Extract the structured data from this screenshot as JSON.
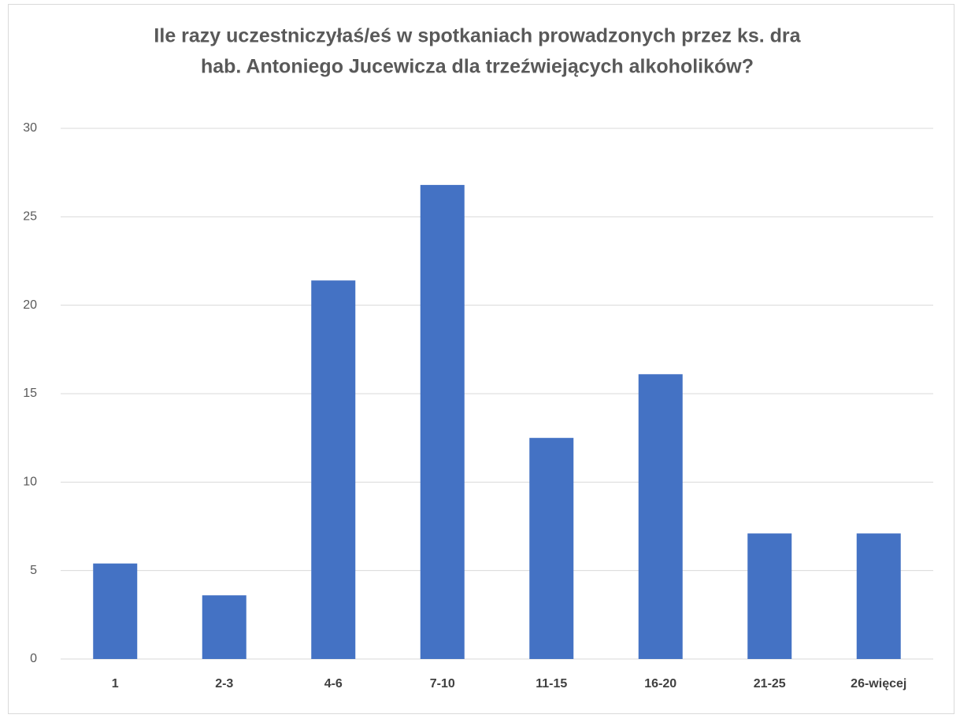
{
  "chart_data": {
    "type": "bar",
    "title": [
      "Ile razy uczestniczyłaś/eś w spotkaniach prowadzonych przez ks. dra",
      "hab. Antoniego Jucewicza dla trzeźwiejących alkoholików?"
    ],
    "categories": [
      "1",
      "2-3",
      "4-6",
      "7-10",
      "11-15",
      "16-20",
      "21-25",
      "26-więcej"
    ],
    "values": [
      5.4,
      3.6,
      21.4,
      26.8,
      12.5,
      16.1,
      7.1,
      7.1
    ],
    "color": "#4472c4",
    "ylim": [
      0,
      30
    ],
    "yticks": [
      0,
      5,
      10,
      15,
      20,
      25,
      30
    ],
    "grid": true
  }
}
